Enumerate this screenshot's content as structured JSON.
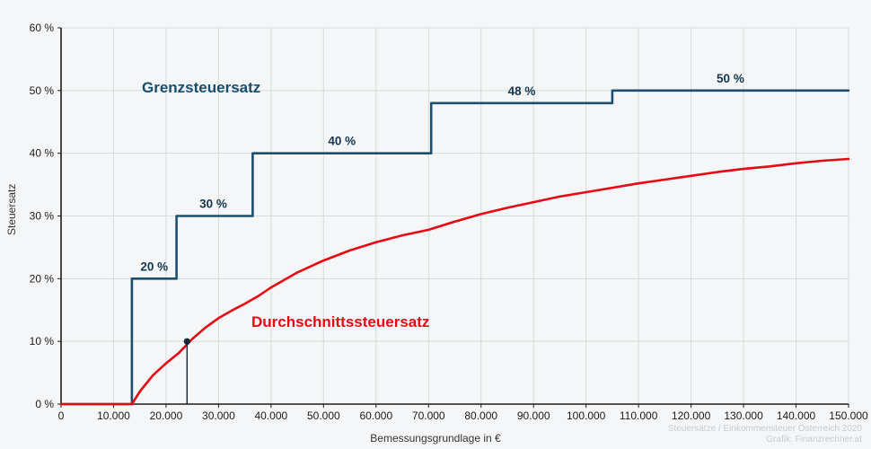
{
  "chart_data": {
    "type": "line",
    "title": "",
    "xlabel": "Bemessungsgrundlage in €",
    "ylabel": "Steuersatz",
    "xlim": [
      0,
      150000
    ],
    "ylim": [
      0,
      60
    ],
    "grid": true,
    "legend_position": "none",
    "x_ticks": [
      0,
      10000,
      20000,
      30000,
      40000,
      50000,
      60000,
      70000,
      80000,
      90000,
      100000,
      110000,
      120000,
      130000,
      140000,
      150000
    ],
    "x_tick_labels": [
      "0",
      "10.000",
      "20.000",
      "30.000",
      "40.000",
      "50.000",
      "60.000",
      "70.000",
      "80.000",
      "90.000",
      "100.000",
      "110.000",
      "120.000",
      "130.000",
      "140.000",
      "150.000"
    ],
    "y_ticks": [
      0,
      10,
      20,
      30,
      40,
      50,
      60
    ],
    "y_tick_labels": [
      "0 %",
      "10 %",
      "20 %",
      "30 %",
      "40 %",
      "50 %",
      "60 %"
    ],
    "series": [
      {
        "id": "grenzsteuersatz",
        "name": "Grenzsteuersatz",
        "color": "#1c4f6e",
        "kind": "step",
        "points": [
          [
            0,
            0
          ],
          [
            13500,
            0
          ],
          [
            13500,
            20
          ],
          [
            22000,
            20
          ],
          [
            22000,
            30
          ],
          [
            36500,
            30
          ],
          [
            36500,
            40
          ],
          [
            70500,
            40
          ],
          [
            70500,
            48
          ],
          [
            105000,
            48
          ],
          [
            105000,
            50
          ],
          [
            150000,
            50
          ]
        ]
      },
      {
        "id": "durchschnittssteuersatz",
        "name": "Durchschnittssteuersatz",
        "color": "#e60914",
        "kind": "curve",
        "points": [
          [
            0,
            0
          ],
          [
            5000,
            0
          ],
          [
            10000,
            0
          ],
          [
            12500,
            0
          ],
          [
            13500,
            0
          ],
          [
            15000,
            2
          ],
          [
            17500,
            4.6
          ],
          [
            20000,
            6.5
          ],
          [
            22500,
            8.2
          ],
          [
            25000,
            10.4
          ],
          [
            27500,
            12.2
          ],
          [
            30000,
            13.7
          ],
          [
            32500,
            14.9
          ],
          [
            35000,
            16
          ],
          [
            37500,
            17.2
          ],
          [
            40000,
            18.6
          ],
          [
            45000,
            21
          ],
          [
            50000,
            22.9
          ],
          [
            55000,
            24.5
          ],
          [
            60000,
            25.8
          ],
          [
            65000,
            26.9
          ],
          [
            70000,
            27.8
          ],
          [
            75000,
            29.1
          ],
          [
            80000,
            30.3
          ],
          [
            85000,
            31.3
          ],
          [
            90000,
            32.2
          ],
          [
            95000,
            33.1
          ],
          [
            100000,
            33.8
          ],
          [
            105000,
            34.5
          ],
          [
            110000,
            35.2
          ],
          [
            115000,
            35.8
          ],
          [
            120000,
            36.4
          ],
          [
            125000,
            37
          ],
          [
            130000,
            37.5
          ],
          [
            135000,
            37.9
          ],
          [
            140000,
            38.4
          ],
          [
            145000,
            38.8
          ],
          [
            150000,
            39.1
          ]
        ]
      }
    ],
    "step_labels": [
      {
        "text": "20 %",
        "x": 17750,
        "y": 20
      },
      {
        "text": "30 %",
        "x": 29000,
        "y": 30
      },
      {
        "text": "40 %",
        "x": 53500,
        "y": 40
      },
      {
        "text": "48 %",
        "x": 87750,
        "y": 48
      },
      {
        "text": "50 %",
        "x": 127500,
        "y": 50
      }
    ],
    "marker": {
      "x": 24000,
      "y": 10
    },
    "style": {
      "background": "#f5f6f7",
      "grid_color": "#d7dbdb",
      "axis_color": "#1c1c1c",
      "tick_color": "#1a1a1a",
      "step_label_color": "#12364f",
      "marker_color": "#10293f"
    }
  },
  "labels": {
    "marginal": "Grenzsteuersatz",
    "average": "Durchschnittssteuersatz",
    "x_axis": "Bemessungsgrundlage in €",
    "y_axis": "Steuersatz"
  },
  "attribution": {
    "line1": "Steuersätze / Einkommensteuer Österreich 2020",
    "line2": "Grafik: Finanzrechner.at"
  }
}
